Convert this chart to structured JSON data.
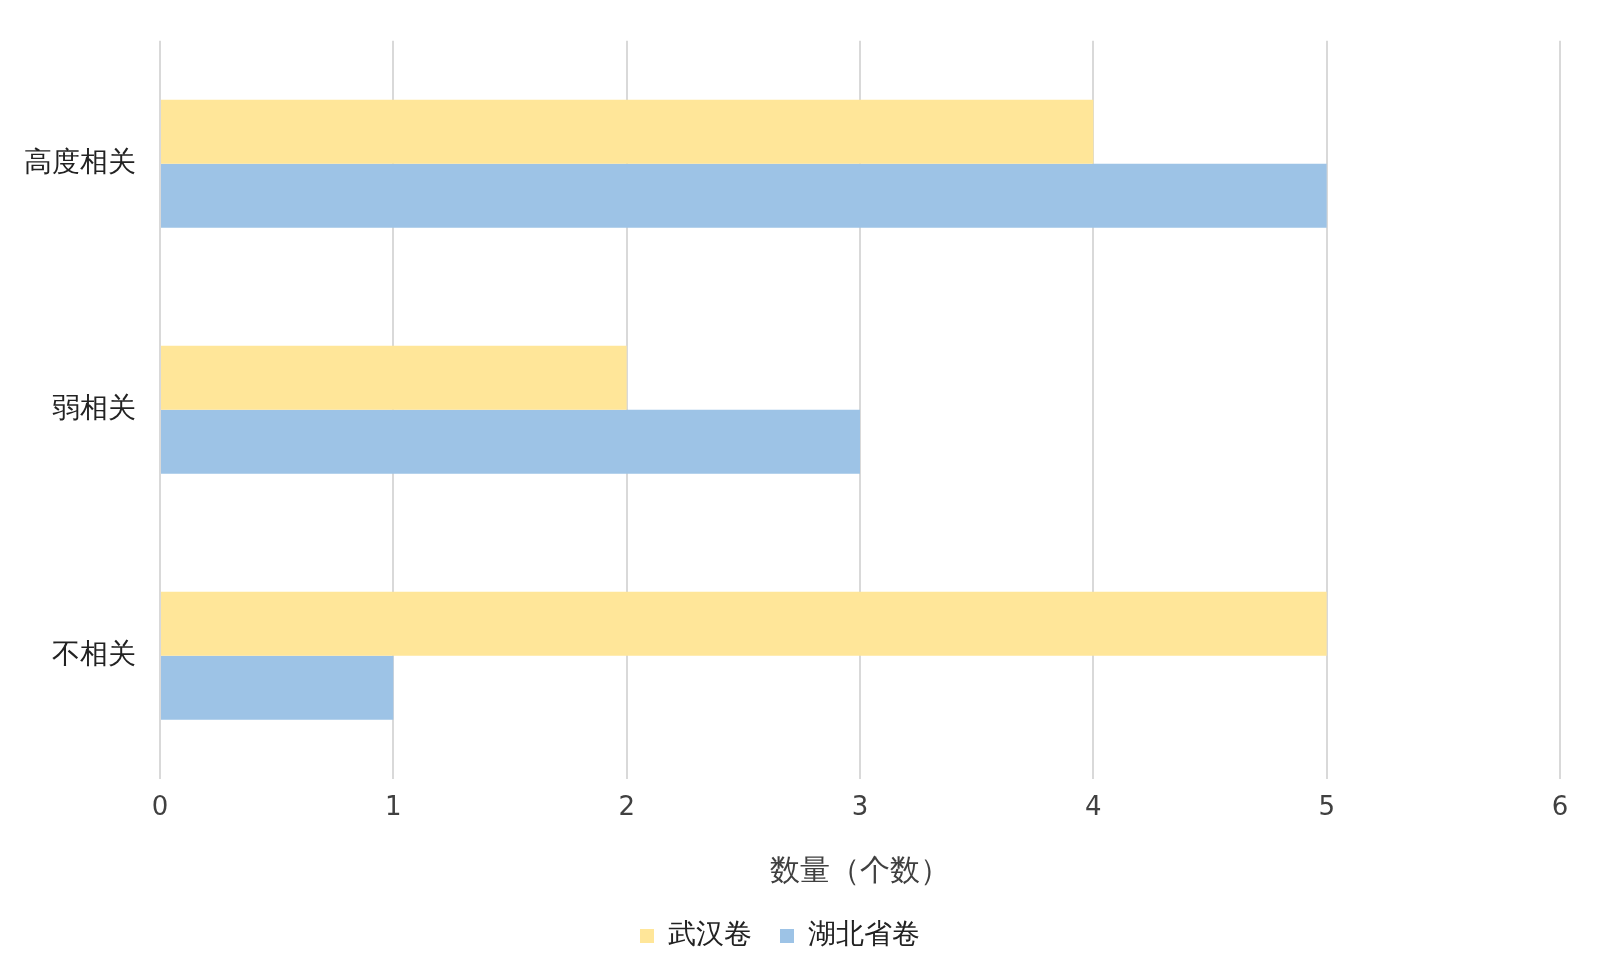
{
  "chart_data": {
    "type": "bar",
    "orientation": "horizontal",
    "categories": [
      "高度相关",
      "弱相关",
      "不相关"
    ],
    "series": [
      {
        "name": "武汉卷",
        "color": "#ffe699",
        "values": [
          4,
          2,
          5
        ]
      },
      {
        "name": "湖北省卷",
        "color": "#9dc3e6",
        "values": [
          5,
          3,
          1
        ]
      }
    ],
    "xlabel": "数量（个数）",
    "xlim": [
      0,
      6
    ],
    "xticks": [
      0,
      1,
      2,
      3,
      4,
      5,
      6
    ],
    "grid": "x",
    "legend": "bottom"
  }
}
